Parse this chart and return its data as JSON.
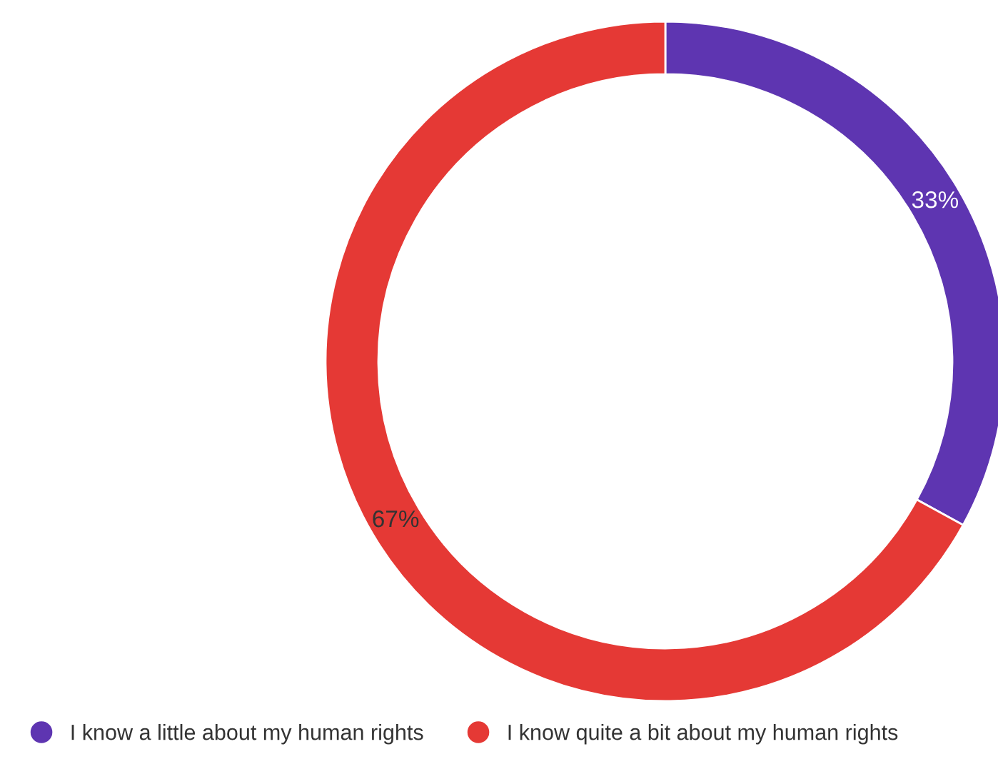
{
  "chart_data": {
    "type": "donut",
    "categories": [
      "I know a little about my human rights",
      "I know quite a bit about my human rights"
    ],
    "values": [
      33,
      67
    ],
    "colors": [
      "#5e35b1",
      "#e53935"
    ],
    "value_labels": [
      "33%",
      "67%"
    ],
    "legend": "bottom"
  }
}
